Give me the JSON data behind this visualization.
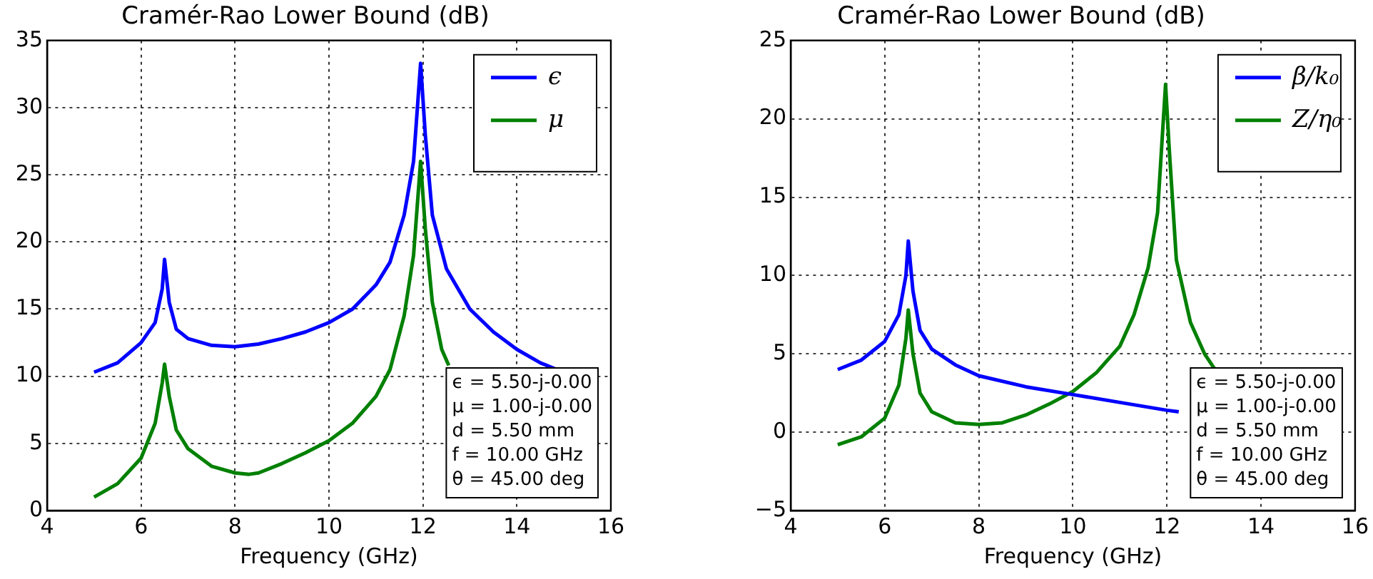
{
  "chart_data": [
    {
      "type": "line",
      "title": "Cramér-Rao Lower Bound (dB)",
      "xlabel": "Frequency (GHz)",
      "xlim": [
        4,
        16
      ],
      "xticks": [
        4,
        6,
        8,
        10,
        12,
        14,
        16
      ],
      "ylim": [
        0,
        35
      ],
      "yticks": [
        0,
        5,
        10,
        15,
        20,
        25,
        30,
        35
      ],
      "grid": true,
      "legend": "top right",
      "line_style": "solid",
      "annotations": [
        "ϵ = 5.50-j-0.00",
        "μ = 1.00-j-0.00",
        "d = 5.50 mm",
        "f = 10.00 GHz",
        "θ = 45.00 deg"
      ],
      "series": [
        {
          "name": "ϵ",
          "color": "#0000ff",
          "x": [
            5,
            5.5,
            6,
            6.3,
            6.45,
            6.5,
            6.6,
            6.75,
            7,
            7.5,
            8,
            8.5,
            9,
            9.5,
            10,
            10.5,
            11,
            11.3,
            11.6,
            11.8,
            11.95,
            12.05,
            12.2,
            12.5,
            13,
            13.5,
            14,
            14.5,
            14.85
          ],
          "values": [
            10.3,
            11,
            12.5,
            14,
            16.5,
            18.7,
            15.5,
            13.5,
            12.8,
            12.3,
            12.2,
            12.4,
            12.8,
            13.3,
            14,
            15,
            16.8,
            18.5,
            22,
            26,
            33.3,
            28,
            22,
            18,
            15,
            13.3,
            12,
            11,
            10.5
          ]
        },
        {
          "name": "μ",
          "color": "#008000",
          "x": [
            5,
            5.5,
            6,
            6.3,
            6.45,
            6.5,
            6.6,
            6.75,
            7,
            7.5,
            8,
            8.3,
            8.5,
            9,
            9.5,
            10,
            10.5,
            11,
            11.3,
            11.6,
            11.8,
            11.95,
            12.05,
            12.2,
            12.4,
            12.55
          ],
          "values": [
            1,
            2,
            3.9,
            6.5,
            9.5,
            10.9,
            8.5,
            6,
            4.6,
            3.3,
            2.8,
            2.7,
            2.8,
            3.5,
            4.3,
            5.2,
            6.5,
            8.5,
            10.5,
            14.5,
            19,
            26,
            21,
            15.5,
            12,
            10.8
          ]
        }
      ]
    },
    {
      "type": "line",
      "title": "Cramér-Rao Lower Bound (dB)",
      "xlabel": "Frequency (GHz)",
      "xlim": [
        4,
        16
      ],
      "xticks": [
        4,
        6,
        8,
        10,
        12,
        14,
        16
      ],
      "ylim": [
        -5,
        25
      ],
      "yticks": [
        {
          "value": -5,
          "label": "−5"
        },
        0,
        5,
        10,
        15,
        20,
        25
      ],
      "grid": true,
      "legend": "top right",
      "line_style": "solid",
      "annotations": [
        "ϵ = 5.50-j-0.00",
        "μ = 1.00-j-0.00",
        "d = 5.50 mm",
        "f = 10.00 GHz",
        "θ = 45.00 deg"
      ],
      "series": [
        {
          "name": "β/k₀",
          "color": "#0000ff",
          "x": [
            5,
            5.5,
            6,
            6.3,
            6.45,
            6.5,
            6.6,
            6.75,
            7,
            7.5,
            8,
            9,
            10,
            11,
            12,
            12.25
          ],
          "values": [
            4,
            4.6,
            5.8,
            7.5,
            10,
            12.2,
            9,
            6.5,
            5.3,
            4.3,
            3.6,
            2.9,
            2.4,
            1.9,
            1.4,
            1.3
          ]
        },
        {
          "name": "Z/η₀",
          "color": "#008000",
          "x": [
            5,
            5.5,
            6,
            6.3,
            6.45,
            6.5,
            6.6,
            6.75,
            7,
            7.5,
            8,
            8.5,
            9,
            9.5,
            10,
            10.5,
            11,
            11.3,
            11.6,
            11.8,
            11.97,
            12.05,
            12.2,
            12.5,
            12.8,
            13,
            13.05
          ],
          "values": [
            -0.8,
            -0.3,
            0.9,
            3,
            6,
            7.8,
            5,
            2.5,
            1.3,
            0.6,
            0.5,
            0.6,
            1.1,
            1.8,
            2.6,
            3.8,
            5.5,
            7.5,
            10.5,
            14,
            22.2,
            18,
            11,
            7,
            5,
            4.1,
            4.0
          ]
        }
      ]
    }
  ]
}
